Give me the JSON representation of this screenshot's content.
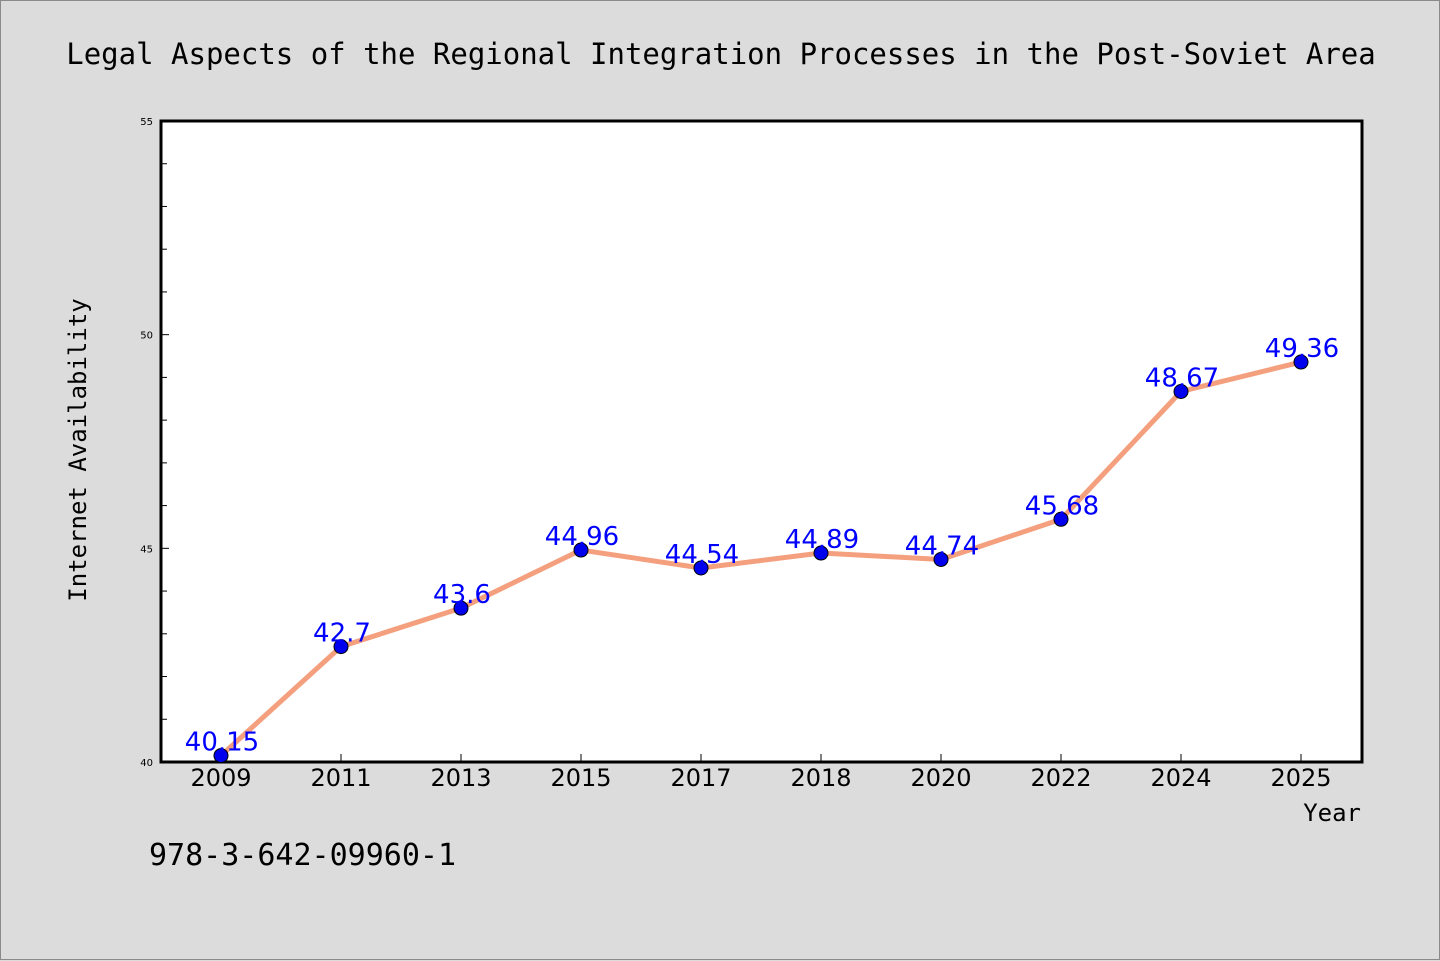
{
  "chart_data": {
    "type": "line",
    "title": "Legal Aspects of the Regional Integration Processes in the Post-Soviet Area",
    "xlabel": "Year",
    "ylabel": "Internet Availability",
    "categories": [
      "2009",
      "2011",
      "2013",
      "2015",
      "2017",
      "2018",
      "2020",
      "2022",
      "2024",
      "2025"
    ],
    "series": [
      {
        "values": [
          40.15,
          42.7,
          43.6,
          44.96,
          44.54,
          44.89,
          44.74,
          45.68,
          48.67,
          49.36
        ],
        "line_color": "#f4a07e",
        "marker_color": "#0000ee"
      }
    ],
    "data_labels": [
      "40.15",
      "42.7",
      "43.6",
      "44.96",
      "44.54",
      "44.89",
      "44.74",
      "45.68",
      "48.67",
      "49.36"
    ],
    "ylim": [
      40,
      55
    ],
    "y_major_ticks": [
      40,
      45,
      50,
      55
    ],
    "y_minor_step": 1,
    "grid": false,
    "legend": "none"
  },
  "footnote": "978-3-642-09960-1"
}
